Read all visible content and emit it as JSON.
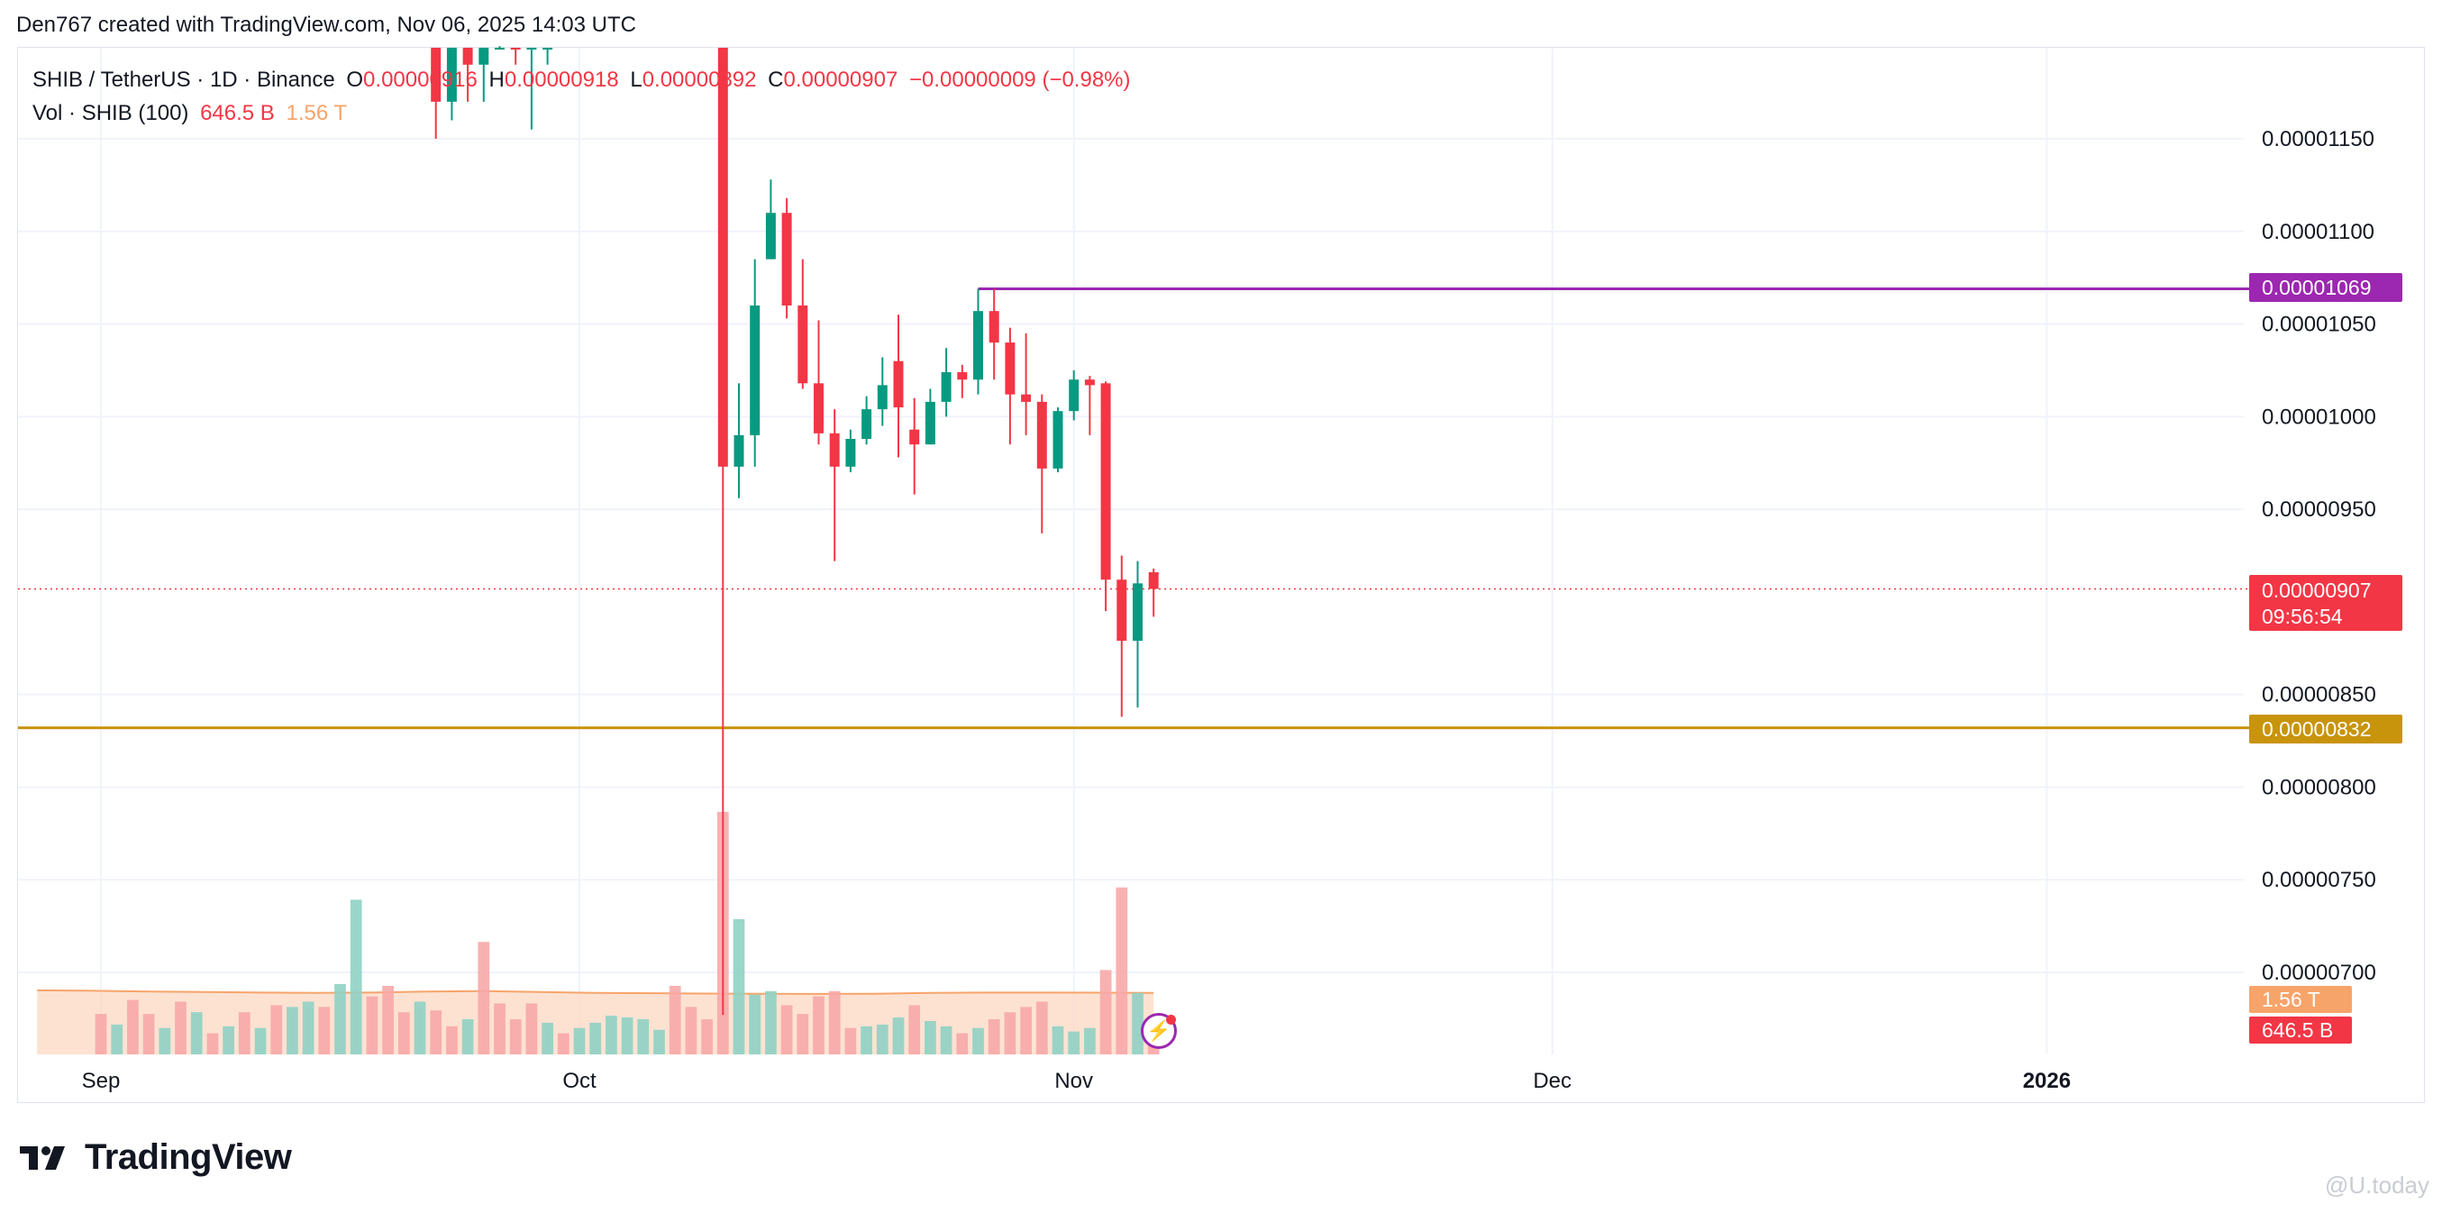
{
  "header": {
    "attribution": "Den767 created with TradingView.com, Nov 06, 2025 14:03 UTC"
  },
  "legend": {
    "symbol": "SHIB / TetherUS · 1D · Binance",
    "o_label": "O",
    "o_value": "0.00000916",
    "h_label": "H",
    "h_value": "0.00000918",
    "l_label": "L",
    "l_value": "0.00000892",
    "c_label": "C",
    "c_value": "0.00000907",
    "change": "−0.00000009 (−0.98%)",
    "vol_label": "Vol · SHIB (100)",
    "vol_value": "646.5 B",
    "vol_ma_value": "1.56 T"
  },
  "price_tags": {
    "resistance": "0.00001069",
    "current": "0.00000907",
    "countdown": "09:56:54",
    "support": "0.00000832",
    "vol_ma": "1.56 T",
    "vol": "646.5 B"
  },
  "colors": {
    "up": "#089981",
    "down": "#f23645",
    "resistance": "#9c27b0",
    "support": "#c8940b",
    "vol_up": "#8fd1c4",
    "vol_down": "#f7a9a9",
    "vol_ma_fill": "#fcd8c3"
  },
  "branding": {
    "logo_text": "TradingView",
    "watermark": "@U.today"
  },
  "chart_data": {
    "type": "candlestick",
    "interval": "1D",
    "x_ticks": [
      "Sep",
      "Oct",
      "Nov",
      "Dec",
      "2026"
    ],
    "y_ticks": [
      "0.00001150",
      "0.00001100",
      "0.00001050",
      "0.00001000",
      "0.00000950",
      "0.00000850",
      "0.00000800",
      "0.00000750",
      "0.00000700"
    ],
    "y_range": [
      6.55e-06,
      1.23e-05
    ],
    "horizontal_lines": [
      {
        "label": "resistance",
        "value": 1.069e-05
      },
      {
        "label": "support",
        "value": 8.32e-06
      }
    ],
    "current_price": 9.07e-06,
    "candles": [
      {
        "date": "2025-09-22",
        "open": 1.23e-05,
        "high": 1.24e-05,
        "low": 1.15e-05,
        "close": 1.17e-05
      },
      {
        "date": "2025-09-23",
        "open": 1.17e-05,
        "high": 1.23e-05,
        "low": 1.16e-05,
        "close": 1.22e-05
      },
      {
        "date": "2025-09-24",
        "open": 1.22e-05,
        "high": 1.23e-05,
        "low": 1.17e-05,
        "close": 1.19e-05
      },
      {
        "date": "2025-09-25",
        "open": 1.19e-05,
        "high": 1.23e-05,
        "low": 1.17e-05,
        "close": 1.22e-05
      },
      {
        "date": "2025-09-26",
        "open": 1.22e-05,
        "high": 1.24e-05,
        "low": 1.2e-05,
        "close": 1.23e-05
      },
      {
        "date": "2025-09-27",
        "open": 1.23e-05,
        "high": 1.24e-05,
        "low": 1.19e-05,
        "close": 1.21e-05
      },
      {
        "date": "2025-09-28",
        "open": 1.21e-05,
        "high": 1.24e-05,
        "low": 1.155e-05,
        "close": 1.22e-05
      },
      {
        "date": "2025-09-29",
        "open": 1.22e-05,
        "high": 1.24e-05,
        "low": 1.19e-05,
        "close": 1.23e-05
      },
      {
        "date": "2025-10-10",
        "open": 1.23e-05,
        "high": 1.235e-05,
        "low": 6.77e-06,
        "close": 9.73e-06
      },
      {
        "date": "2025-10-11",
        "open": 9.73e-06,
        "high": 1.018e-05,
        "low": 9.56e-06,
        "close": 9.9e-06
      },
      {
        "date": "2025-10-12",
        "open": 9.9e-06,
        "high": 1.085e-05,
        "low": 9.73e-06,
        "close": 1.06e-05
      },
      {
        "date": "2025-10-13",
        "open": 1.085e-05,
        "high": 1.128e-05,
        "low": 1.085e-05,
        "close": 1.11e-05
      },
      {
        "date": "2025-10-14",
        "open": 1.11e-05,
        "high": 1.118e-05,
        "low": 1.053e-05,
        "close": 1.06e-05
      },
      {
        "date": "2025-10-15",
        "open": 1.06e-05,
        "high": 1.085e-05,
        "low": 1.015e-05,
        "close": 1.018e-05
      },
      {
        "date": "2025-10-16",
        "open": 1.018e-05,
        "high": 1.052e-05,
        "low": 9.85e-06,
        "close": 9.91e-06
      },
      {
        "date": "2025-10-17",
        "open": 9.91e-06,
        "high": 1.004e-05,
        "low": 9.22e-06,
        "close": 9.73e-06
      },
      {
        "date": "2025-10-18",
        "open": 9.73e-06,
        "high": 9.93e-06,
        "low": 9.7e-06,
        "close": 9.88e-06
      },
      {
        "date": "2025-10-19",
        "open": 9.88e-06,
        "high": 1.011e-05,
        "low": 9.85e-06,
        "close": 1.004e-05
      },
      {
        "date": "2025-10-20",
        "open": 1.004e-05,
        "high": 1.032e-05,
        "low": 9.95e-06,
        "close": 1.017e-05
      },
      {
        "date": "2025-10-21",
        "open": 1.03e-05,
        "high": 1.055e-05,
        "low": 9.78e-06,
        "close": 1.005e-05
      },
      {
        "date": "2025-10-22",
        "open": 9.93e-06,
        "high": 1.01e-05,
        "low": 9.58e-06,
        "close": 9.85e-06
      },
      {
        "date": "2025-10-23",
        "open": 9.85e-06,
        "high": 1.015e-05,
        "low": 9.85e-06,
        "close": 1.008e-05
      },
      {
        "date": "2025-10-24",
        "open": 1.008e-05,
        "high": 1.037e-05,
        "low": 1e-05,
        "close": 1.024e-05
      },
      {
        "date": "2025-10-25",
        "open": 1.024e-05,
        "high": 1.028e-05,
        "low": 1.01e-05,
        "close": 1.02e-05
      },
      {
        "date": "2025-10-26",
        "open": 1.02e-05,
        "high": 1.069e-05,
        "low": 1.012e-05,
        "close": 1.057e-05
      },
      {
        "date": "2025-10-27",
        "open": 1.057e-05,
        "high": 1.069e-05,
        "low": 1.02e-05,
        "close": 1.04e-05
      },
      {
        "date": "2025-10-28",
        "open": 1.04e-05,
        "high": 1.048e-05,
        "low": 9.85e-06,
        "close": 1.012e-05
      },
      {
        "date": "2025-10-29",
        "open": 1.012e-05,
        "high": 1.045e-05,
        "low": 9.9e-06,
        "close": 1.008e-05
      },
      {
        "date": "2025-10-30",
        "open": 1.008e-05,
        "high": 1.012e-05,
        "low": 9.37e-06,
        "close": 9.72e-06
      },
      {
        "date": "2025-10-31",
        "open": 9.72e-06,
        "high": 1.005e-05,
        "low": 9.7e-06,
        "close": 1.003e-05
      },
      {
        "date": "2025-11-01",
        "open": 1.003e-05,
        "high": 1.025e-05,
        "low": 9.98e-06,
        "close": 1.02e-05
      },
      {
        "date": "2025-11-02",
        "open": 1.02e-05,
        "high": 1.022e-05,
        "low": 9.9e-06,
        "close": 1.017e-05
      },
      {
        "date": "2025-11-03",
        "open": 1.018e-05,
        "high": 1.019e-05,
        "low": 8.95e-06,
        "close": 9.12e-06
      },
      {
        "date": "2025-11-04",
        "open": 9.12e-06,
        "high": 9.25e-06,
        "low": 8.38e-06,
        "close": 8.79e-06
      },
      {
        "date": "2025-11-05",
        "open": 8.79e-06,
        "high": 9.22e-06,
        "low": 8.43e-06,
        "close": 9.1e-06
      },
      {
        "date": "2025-11-06",
        "open": 9.16e-06,
        "high": 9.18e-06,
        "low": 8.92e-06,
        "close": 9.07e-06
      }
    ],
    "volume_unit": "B SHIB",
    "volume": [
      {
        "date": "2025-09-01",
        "value": 230,
        "dir": "down"
      },
      {
        "date": "2025-09-02",
        "value": 170,
        "dir": "up"
      },
      {
        "date": "2025-09-03",
        "value": 310,
        "dir": "down"
      },
      {
        "date": "2025-09-04",
        "value": 230,
        "dir": "down"
      },
      {
        "date": "2025-09-05",
        "value": 150,
        "dir": "up"
      },
      {
        "date": "2025-09-06",
        "value": 300,
        "dir": "down"
      },
      {
        "date": "2025-09-07",
        "value": 240,
        "dir": "up"
      },
      {
        "date": "2025-09-08",
        "value": 120,
        "dir": "down"
      },
      {
        "date": "2025-09-09",
        "value": 160,
        "dir": "up"
      },
      {
        "date": "2025-09-10",
        "value": 240,
        "dir": "down"
      },
      {
        "date": "2025-09-11",
        "value": 150,
        "dir": "up"
      },
      {
        "date": "2025-09-12",
        "value": 280,
        "dir": "down"
      },
      {
        "date": "2025-09-13",
        "value": 270,
        "dir": "up"
      },
      {
        "date": "2025-09-14",
        "value": 300,
        "dir": "up"
      },
      {
        "date": "2025-09-15",
        "value": 270,
        "dir": "down"
      },
      {
        "date": "2025-09-16",
        "value": 400,
        "dir": "up"
      },
      {
        "date": "2025-09-17",
        "value": 880,
        "dir": "up"
      },
      {
        "date": "2025-09-18",
        "value": 330,
        "dir": "down"
      },
      {
        "date": "2025-09-19",
        "value": 390,
        "dir": "down"
      },
      {
        "date": "2025-09-20",
        "value": 240,
        "dir": "down"
      },
      {
        "date": "2025-09-21",
        "value": 300,
        "dir": "up"
      },
      {
        "date": "2025-09-22",
        "value": 250,
        "dir": "down"
      },
      {
        "date": "2025-09-23",
        "value": 160,
        "dir": "down"
      },
      {
        "date": "2025-09-24",
        "value": 200,
        "dir": "up"
      },
      {
        "date": "2025-09-25",
        "value": 640,
        "dir": "down"
      },
      {
        "date": "2025-09-26",
        "value": 290,
        "dir": "down"
      },
      {
        "date": "2025-09-27",
        "value": 200,
        "dir": "down"
      },
      {
        "date": "2025-09-28",
        "value": 290,
        "dir": "down"
      },
      {
        "date": "2025-09-29",
        "value": 180,
        "dir": "up"
      },
      {
        "date": "2025-09-30",
        "value": 120,
        "dir": "down"
      },
      {
        "date": "2025-10-01",
        "value": 150,
        "dir": "up"
      },
      {
        "date": "2025-10-02",
        "value": 180,
        "dir": "up"
      },
      {
        "date": "2025-10-03",
        "value": 220,
        "dir": "up"
      },
      {
        "date": "2025-10-04",
        "value": 210,
        "dir": "up"
      },
      {
        "date": "2025-10-05",
        "value": 200,
        "dir": "up"
      },
      {
        "date": "2025-10-06",
        "value": 140,
        "dir": "up"
      },
      {
        "date": "2025-10-07",
        "value": 390,
        "dir": "down"
      },
      {
        "date": "2025-10-08",
        "value": 270,
        "dir": "down"
      },
      {
        "date": "2025-10-09",
        "value": 200,
        "dir": "down"
      },
      {
        "date": "2025-10-10",
        "value": 1380,
        "dir": "down"
      },
      {
        "date": "2025-10-11",
        "value": 770,
        "dir": "up"
      },
      {
        "date": "2025-10-12",
        "value": 340,
        "dir": "up"
      },
      {
        "date": "2025-10-13",
        "value": 360,
        "dir": "up"
      },
      {
        "date": "2025-10-14",
        "value": 280,
        "dir": "down"
      },
      {
        "date": "2025-10-15",
        "value": 230,
        "dir": "down"
      },
      {
        "date": "2025-10-16",
        "value": 330,
        "dir": "down"
      },
      {
        "date": "2025-10-17",
        "value": 360,
        "dir": "down"
      },
      {
        "date": "2025-10-18",
        "value": 150,
        "dir": "down"
      },
      {
        "date": "2025-10-19",
        "value": 160,
        "dir": "up"
      },
      {
        "date": "2025-10-20",
        "value": 170,
        "dir": "up"
      },
      {
        "date": "2025-10-21",
        "value": 210,
        "dir": "up"
      },
      {
        "date": "2025-10-22",
        "value": 280,
        "dir": "down"
      },
      {
        "date": "2025-10-23",
        "value": 190,
        "dir": "up"
      },
      {
        "date": "2025-10-24",
        "value": 160,
        "dir": "up"
      },
      {
        "date": "2025-10-25",
        "value": 120,
        "dir": "down"
      },
      {
        "date": "2025-10-26",
        "value": 150,
        "dir": "up"
      },
      {
        "date": "2025-10-27",
        "value": 200,
        "dir": "down"
      },
      {
        "date": "2025-10-28",
        "value": 240,
        "dir": "down"
      },
      {
        "date": "2025-10-29",
        "value": 270,
        "dir": "down"
      },
      {
        "date": "2025-10-30",
        "value": 300,
        "dir": "down"
      },
      {
        "date": "2025-10-31",
        "value": 160,
        "dir": "up"
      },
      {
        "date": "2025-11-01",
        "value": 130,
        "dir": "up"
      },
      {
        "date": "2025-11-02",
        "value": 150,
        "dir": "up"
      },
      {
        "date": "2025-11-03",
        "value": 480,
        "dir": "down"
      },
      {
        "date": "2025-11-04",
        "value": 950,
        "dir": "down"
      },
      {
        "date": "2025-11-05",
        "value": 350,
        "dir": "up"
      },
      {
        "date": "2025-11-06",
        "value": 150,
        "dir": "down"
      }
    ],
    "volume_ma": [
      365,
      362,
      358,
      355,
      352,
      350,
      352,
      358,
      360,
      355,
      350,
      348,
      346,
      345,
      344,
      345,
      350,
      352,
      352,
      351,
      350
    ]
  }
}
